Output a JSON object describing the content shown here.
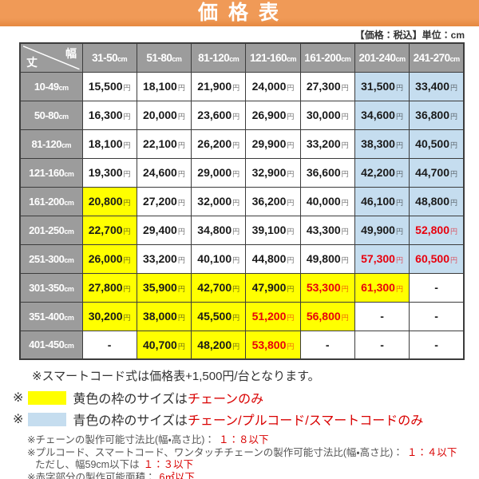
{
  "title": "価 格 表",
  "unit_note": "【価格：税込】単位：cm",
  "colors": {
    "accent_orange": "#ED924D",
    "header_gray": "#9C9C9C",
    "highlight_yellow": "#FFFF00",
    "highlight_blue": "#C5DDEF",
    "price_red": "#E8000D",
    "note_red": "#D90000",
    "border_dark": "#3C3C3C"
  },
  "table": {
    "corner": {
      "width_label": "幅",
      "height_label": "丈"
    },
    "col_headers": [
      {
        "range": "31-50",
        "unit": "cm"
      },
      {
        "range": "51-80",
        "unit": "cm"
      },
      {
        "range": "81-120",
        "unit": "cm"
      },
      {
        "range": "121-160",
        "unit": "cm"
      },
      {
        "range": "161-200",
        "unit": "cm"
      },
      {
        "range": "201-240",
        "unit": "cm"
      },
      {
        "range": "241-270",
        "unit": "cm"
      }
    ],
    "rows": [
      {
        "label": "10-49",
        "unit": "cm",
        "cells": [
          {
            "v": "15,500",
            "s": "円",
            "bg": "none",
            "red": false
          },
          {
            "v": "18,100",
            "s": "円",
            "bg": "none",
            "red": false
          },
          {
            "v": "21,900",
            "s": "円",
            "bg": "none",
            "red": false
          },
          {
            "v": "24,000",
            "s": "円",
            "bg": "none",
            "red": false
          },
          {
            "v": "27,300",
            "s": "円",
            "bg": "none",
            "red": false
          },
          {
            "v": "31,500",
            "s": "円",
            "bg": "blue",
            "red": false
          },
          {
            "v": "33,400",
            "s": "円",
            "bg": "blue",
            "red": false
          }
        ]
      },
      {
        "label": "50-80",
        "unit": "cm",
        "cells": [
          {
            "v": "16,300",
            "s": "円",
            "bg": "none",
            "red": false
          },
          {
            "v": "20,000",
            "s": "円",
            "bg": "none",
            "red": false
          },
          {
            "v": "23,600",
            "s": "円",
            "bg": "none",
            "red": false
          },
          {
            "v": "26,900",
            "s": "円",
            "bg": "none",
            "red": false
          },
          {
            "v": "30,000",
            "s": "円",
            "bg": "none",
            "red": false
          },
          {
            "v": "34,600",
            "s": "円",
            "bg": "blue",
            "red": false
          },
          {
            "v": "36,800",
            "s": "円",
            "bg": "blue",
            "red": false
          }
        ]
      },
      {
        "label": "81-120",
        "unit": "cm",
        "cells": [
          {
            "v": "18,100",
            "s": "円",
            "bg": "none",
            "red": false
          },
          {
            "v": "22,100",
            "s": "円",
            "bg": "none",
            "red": false
          },
          {
            "v": "26,200",
            "s": "円",
            "bg": "none",
            "red": false
          },
          {
            "v": "29,900",
            "s": "円",
            "bg": "none",
            "red": false
          },
          {
            "v": "33,200",
            "s": "円",
            "bg": "none",
            "red": false
          },
          {
            "v": "38,300",
            "s": "円",
            "bg": "blue",
            "red": false
          },
          {
            "v": "40,500",
            "s": "円",
            "bg": "blue",
            "red": false
          }
        ]
      },
      {
        "label": "121-160",
        "unit": "cm",
        "cells": [
          {
            "v": "19,300",
            "s": "円",
            "bg": "none",
            "red": false
          },
          {
            "v": "24,600",
            "s": "円",
            "bg": "none",
            "red": false
          },
          {
            "v": "29,000",
            "s": "円",
            "bg": "none",
            "red": false
          },
          {
            "v": "32,900",
            "s": "円",
            "bg": "none",
            "red": false
          },
          {
            "v": "36,600",
            "s": "円",
            "bg": "none",
            "red": false
          },
          {
            "v": "42,200",
            "s": "円",
            "bg": "blue",
            "red": false
          },
          {
            "v": "44,700",
            "s": "円",
            "bg": "blue",
            "red": false
          }
        ]
      },
      {
        "label": "161-200",
        "unit": "cm",
        "cells": [
          {
            "v": "20,800",
            "s": "円",
            "bg": "yellow",
            "red": false
          },
          {
            "v": "27,200",
            "s": "円",
            "bg": "none",
            "red": false
          },
          {
            "v": "32,000",
            "s": "円",
            "bg": "none",
            "red": false
          },
          {
            "v": "36,200",
            "s": "円",
            "bg": "none",
            "red": false
          },
          {
            "v": "40,000",
            "s": "円",
            "bg": "none",
            "red": false
          },
          {
            "v": "46,100",
            "s": "円",
            "bg": "blue",
            "red": false
          },
          {
            "v": "48,800",
            "s": "円",
            "bg": "blue",
            "red": false
          }
        ]
      },
      {
        "label": "201-250",
        "unit": "cm",
        "cells": [
          {
            "v": "22,700",
            "s": "円",
            "bg": "yellow",
            "red": false
          },
          {
            "v": "29,400",
            "s": "円",
            "bg": "none",
            "red": false
          },
          {
            "v": "34,800",
            "s": "円",
            "bg": "none",
            "red": false
          },
          {
            "v": "39,100",
            "s": "円",
            "bg": "none",
            "red": false
          },
          {
            "v": "43,300",
            "s": "円",
            "bg": "none",
            "red": false
          },
          {
            "v": "49,900",
            "s": "円",
            "bg": "blue",
            "red": false
          },
          {
            "v": "52,800",
            "s": "円",
            "bg": "blue",
            "red": true
          }
        ]
      },
      {
        "label": "251-300",
        "unit": "cm",
        "cells": [
          {
            "v": "26,000",
            "s": "円",
            "bg": "yellow",
            "red": false
          },
          {
            "v": "33,200",
            "s": "円",
            "bg": "none",
            "red": false
          },
          {
            "v": "40,100",
            "s": "円",
            "bg": "none",
            "red": false
          },
          {
            "v": "44,800",
            "s": "円",
            "bg": "none",
            "red": false
          },
          {
            "v": "49,800",
            "s": "円",
            "bg": "none",
            "red": false
          },
          {
            "v": "57,300",
            "s": "円",
            "bg": "blue",
            "red": true
          },
          {
            "v": "60,500",
            "s": "円",
            "bg": "blue",
            "red": true
          }
        ]
      },
      {
        "label": "301-350",
        "unit": "cm",
        "cells": [
          {
            "v": "27,800",
            "s": "円",
            "bg": "yellow",
            "red": false
          },
          {
            "v": "35,900",
            "s": "円",
            "bg": "yellow",
            "red": false
          },
          {
            "v": "42,700",
            "s": "円",
            "bg": "yellow",
            "red": false
          },
          {
            "v": "47,900",
            "s": "円",
            "bg": "yellow",
            "red": false
          },
          {
            "v": "53,300",
            "s": "円",
            "bg": "yellow",
            "red": true
          },
          {
            "v": "61,300",
            "s": "円",
            "bg": "yellow",
            "red": true
          },
          {
            "v": "-",
            "s": "",
            "bg": "none",
            "red": false
          }
        ]
      },
      {
        "label": "351-400",
        "unit": "cm",
        "cells": [
          {
            "v": "30,200",
            "s": "円",
            "bg": "yellow",
            "red": false
          },
          {
            "v": "38,000",
            "s": "円",
            "bg": "yellow",
            "red": false
          },
          {
            "v": "45,500",
            "s": "円",
            "bg": "yellow",
            "red": false
          },
          {
            "v": "51,200",
            "s": "円",
            "bg": "yellow",
            "red": true
          },
          {
            "v": "56,800",
            "s": "円",
            "bg": "yellow",
            "red": true
          },
          {
            "v": "-",
            "s": "",
            "bg": "none",
            "red": false
          },
          {
            "v": "-",
            "s": "",
            "bg": "none",
            "red": false
          }
        ]
      },
      {
        "label": "401-450",
        "unit": "cm",
        "cells": [
          {
            "v": "-",
            "s": "",
            "bg": "none",
            "red": false
          },
          {
            "v": "40,700",
            "s": "円",
            "bg": "yellow",
            "red": false
          },
          {
            "v": "48,200",
            "s": "円",
            "bg": "yellow",
            "red": false
          },
          {
            "v": "53,800",
            "s": "円",
            "bg": "yellow",
            "red": true
          },
          {
            "v": "-",
            "s": "",
            "bg": "none",
            "red": false
          },
          {
            "v": "-",
            "s": "",
            "bg": "none",
            "red": false
          },
          {
            "v": "-",
            "s": "",
            "bg": "none",
            "red": false
          }
        ]
      }
    ]
  },
  "notes": {
    "smartcode": "※スマートコード式は価格表+1,500円/台となります。",
    "legend_yellow": {
      "mark": "※",
      "label": "黄色の枠のサイズは",
      "value": "チェーンのみ"
    },
    "legend_blue": {
      "mark": "※",
      "label": "青色の枠のサイズは",
      "value": "チェーン/プルコード/スマートコードのみ"
    },
    "fine": [
      {
        "text": "※チェーンの製作可能寸法比(幅・高さ比)：",
        "red": "１：８以下",
        "indent": false
      },
      {
        "text": "※プルコード、スマートコード、ワンタッチチェーンの製作可能寸法比(幅・高さ比)：",
        "red": "１：４以下",
        "indent": false
      },
      {
        "text": "ただし、幅59cm以下は",
        "red": "１：３以下",
        "indent": true
      },
      {
        "text": "※赤字部分の製作可能面積：",
        "red": "6㎡以下",
        "indent": false
      }
    ]
  },
  "chart_data": {
    "type": "table",
    "title": "価格表（価格：税込 / 単位：cm）",
    "columns": [
      "31-50cm",
      "51-80cm",
      "81-120cm",
      "121-160cm",
      "161-200cm",
      "201-240cm",
      "241-270cm"
    ],
    "row_labels": [
      "10-49cm",
      "50-80cm",
      "81-120cm",
      "121-160cm",
      "161-200cm",
      "201-250cm",
      "251-300cm",
      "301-350cm",
      "351-400cm",
      "401-450cm"
    ],
    "values_yen": [
      [
        15500,
        18100,
        21900,
        24000,
        27300,
        31500,
        33400
      ],
      [
        16300,
        20000,
        23600,
        26900,
        30000,
        34600,
        36800
      ],
      [
        18100,
        22100,
        26200,
        29900,
        33200,
        38300,
        40500
      ],
      [
        19300,
        24600,
        29000,
        32900,
        36600,
        42200,
        44700
      ],
      [
        20800,
        27200,
        32000,
        36200,
        40000,
        46100,
        48800
      ],
      [
        22700,
        29400,
        34800,
        39100,
        43300,
        49900,
        52800
      ],
      [
        26000,
        33200,
        40100,
        44800,
        49800,
        57300,
        60500
      ],
      [
        27800,
        35900,
        42700,
        47900,
        53300,
        61300,
        null
      ],
      [
        30200,
        38000,
        45500,
        51200,
        56800,
        null,
        null
      ],
      [
        null,
        40700,
        48200,
        53800,
        null,
        null,
        null
      ]
    ],
    "legend": {
      "yellow_cells": "チェーンのみ",
      "blue_cells": "チェーン/プルコード/スマートコードのみ",
      "red_values": "製作可能面積 6㎡以下"
    }
  }
}
